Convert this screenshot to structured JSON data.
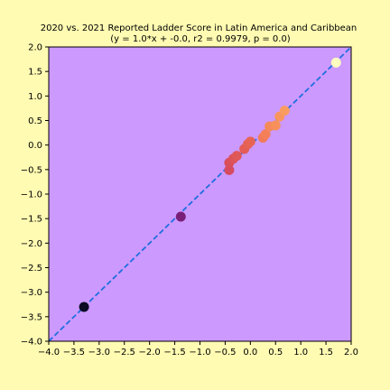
{
  "chart_data": {
    "type": "scatter",
    "title": "2020 vs. 2021 Reported Ladder Score in Latin America and Caribbean",
    "subtitle": "(y = 1.0*x + -0.0, r2 = 0.9979, p = 0.0)",
    "xlabel": "",
    "ylabel": "",
    "xlim": [
      -4.0,
      2.0
    ],
    "ylim": [
      -4.0,
      2.0
    ],
    "xticks": [
      "−4.0",
      "−3.5",
      "−3.0",
      "−2.5",
      "−2.0",
      "−1.5",
      "−1.0",
      "−0.5",
      "0.0",
      "0.5",
      "1.0",
      "1.5",
      "2.0"
    ],
    "yticks": [
      "−4.0",
      "−3.5",
      "−3.0",
      "−2.5",
      "−2.0",
      "−1.5",
      "−1.0",
      "−0.5",
      "0.0",
      "0.5",
      "1.0",
      "1.5",
      "2.0"
    ],
    "grid": false,
    "legend": "none",
    "fit_line": {
      "slope": 1.0,
      "intercept": 0.0,
      "color": "#1f6fe0",
      "style": "dashed"
    },
    "colors": {
      "figure_background": "#fffbb2",
      "plot_background": "#cc99ff"
    },
    "points": [
      {
        "x": -3.3,
        "y": -3.3,
        "color": "#0b0b24"
      },
      {
        "x": -1.38,
        "y": -1.46,
        "color": "#7a1f78"
      },
      {
        "x": -0.42,
        "y": -0.51,
        "color": "#d64b5f"
      },
      {
        "x": -0.42,
        "y": -0.36,
        "color": "#d94f5c"
      },
      {
        "x": -0.34,
        "y": -0.28,
        "color": "#dc535a"
      },
      {
        "x": -0.27,
        "y": -0.22,
        "color": "#df5858"
      },
      {
        "x": -0.12,
        "y": -0.08,
        "color": "#e45c55"
      },
      {
        "x": -0.05,
        "y": 0.02,
        "color": "#e56055"
      },
      {
        "x": 0.0,
        "y": 0.07,
        "color": "#e76455"
      },
      {
        "x": 0.25,
        "y": 0.15,
        "color": "#f27a57"
      },
      {
        "x": 0.3,
        "y": 0.22,
        "color": "#f47f58"
      },
      {
        "x": 0.38,
        "y": 0.38,
        "color": "#f6895a"
      },
      {
        "x": 0.5,
        "y": 0.4,
        "color": "#f8905c"
      },
      {
        "x": 0.58,
        "y": 0.58,
        "color": "#f9955e"
      },
      {
        "x": 0.68,
        "y": 0.7,
        "color": "#fa9c60"
      },
      {
        "x": 1.7,
        "y": 1.68,
        "color": "#fcfdbf"
      }
    ]
  }
}
